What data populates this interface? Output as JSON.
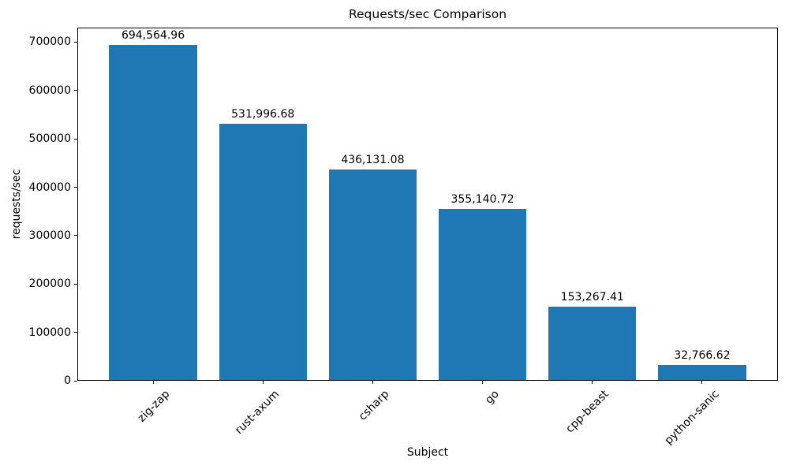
{
  "chart_data": {
    "type": "bar",
    "title": "Requests/sec Comparison",
    "xlabel": "Subject",
    "ylabel": "requests/sec",
    "categories": [
      "zig-zap",
      "rust-axum",
      "csharp",
      "go",
      "cpp-beast",
      "python-sanic"
    ],
    "values": [
      694564.96,
      531996.68,
      436131.08,
      355140.72,
      153267.41,
      32766.62
    ],
    "value_labels": [
      "694,564.96",
      "531,996.68",
      "436,131.08",
      "355,140.72",
      "153,267.41",
      "32,766.62"
    ],
    "yticks": [
      0,
      100000,
      200000,
      300000,
      400000,
      500000,
      600000,
      700000
    ],
    "ylim": [
      0,
      730000
    ],
    "bar_color": "#1f77b4",
    "text_color": "#000000",
    "grid": false,
    "legend": null,
    "x_tick_rotation_degrees": 45
  }
}
